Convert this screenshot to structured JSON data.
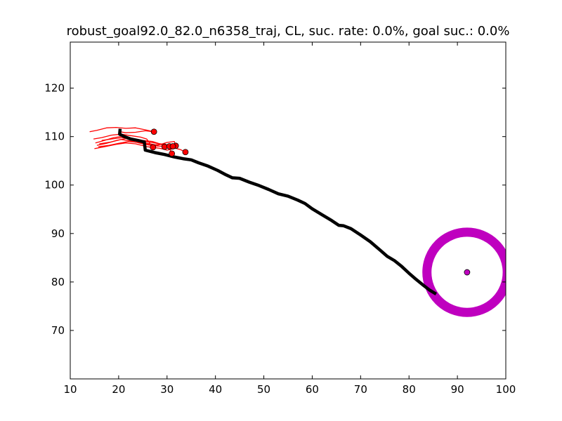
{
  "chart_data": {
    "type": "scatter",
    "title": "robust_goal92.0_82.0_n6358_traj, CL, suc. rate: 0.0%, goal suc.: 0.0%",
    "xlabel": "",
    "ylabel": "",
    "xlim": [
      10,
      100
    ],
    "ylim": [
      60,
      129.5
    ],
    "xticks": [
      10,
      20,
      30,
      40,
      50,
      60,
      70,
      80,
      90,
      100
    ],
    "yticks": [
      70,
      80,
      90,
      100,
      110,
      120
    ],
    "grid": false,
    "goal": {
      "x": 92.0,
      "y": 82.0,
      "radius": 8.3,
      "color": "#bf00bf"
    },
    "main_trajectory": {
      "color": "#000000",
      "points": [
        [
          20.3,
          111.6
        ],
        [
          20.2,
          110.5
        ],
        [
          21.2,
          110.0
        ],
        [
          22.5,
          109.5
        ],
        [
          24.0,
          109.2
        ],
        [
          25.3,
          108.9
        ],
        [
          25.5,
          107.2
        ],
        [
          27.5,
          106.7
        ],
        [
          29.5,
          106.3
        ],
        [
          31.5,
          105.8
        ],
        [
          33.5,
          105.4
        ],
        [
          35.0,
          105.2
        ],
        [
          36.5,
          104.6
        ],
        [
          38.5,
          103.9
        ],
        [
          40.5,
          103.0
        ],
        [
          42.2,
          102.1
        ],
        [
          43.5,
          101.5
        ],
        [
          45.0,
          101.4
        ],
        [
          47.0,
          100.6
        ],
        [
          49.0,
          99.9
        ],
        [
          51.0,
          99.1
        ],
        [
          53.0,
          98.2
        ],
        [
          55.0,
          97.7
        ],
        [
          57.0,
          96.9
        ],
        [
          58.5,
          96.2
        ],
        [
          60.0,
          95.1
        ],
        [
          62.0,
          93.9
        ],
        [
          64.0,
          92.7
        ],
        [
          65.5,
          91.7
        ],
        [
          66.5,
          91.6
        ],
        [
          68.0,
          91.0
        ],
        [
          70.0,
          89.7
        ],
        [
          72.0,
          88.3
        ],
        [
          74.0,
          86.6
        ],
        [
          75.5,
          85.3
        ],
        [
          77.0,
          84.4
        ],
        [
          78.5,
          83.2
        ],
        [
          80.0,
          81.8
        ],
        [
          81.5,
          80.5
        ],
        [
          83.0,
          79.3
        ],
        [
          84.3,
          78.3
        ],
        [
          85.6,
          77.5
        ]
      ]
    },
    "rollouts": {
      "color": "#ff0000",
      "lines": [
        [
          [
            20.3,
            111.0
          ],
          [
            21.5,
            110.8
          ],
          [
            23.5,
            110.9
          ],
          [
            25.5,
            111.2
          ],
          [
            27.3,
            111.0
          ]
        ],
        [
          [
            14.0,
            111.0
          ],
          [
            15.5,
            111.3
          ],
          [
            17.5,
            111.8
          ],
          [
            19.5,
            111.9
          ],
          [
            21.5,
            111.7
          ],
          [
            23.5,
            111.8
          ],
          [
            25.5,
            111.4
          ],
          [
            27.3,
            111.0
          ]
        ],
        [
          [
            14.8,
            109.5
          ],
          [
            16.5,
            109.8
          ],
          [
            18.5,
            110.3
          ],
          [
            20.5,
            110.5
          ],
          [
            22.5,
            110.2
          ],
          [
            24.5,
            109.9
          ],
          [
            25.8,
            109.5
          ],
          [
            26.5,
            108.5
          ],
          [
            27.1,
            107.8
          ]
        ],
        [
          [
            15.2,
            108.7
          ],
          [
            17.0,
            109.2
          ],
          [
            19.0,
            109.8
          ],
          [
            21.0,
            110.1
          ],
          [
            23.0,
            109.6
          ],
          [
            25.0,
            109.2
          ],
          [
            27.0,
            109.0
          ],
          [
            28.5,
            108.5
          ],
          [
            29.5,
            107.9
          ]
        ],
        [
          [
            15.5,
            108.2
          ],
          [
            17.5,
            108.6
          ],
          [
            19.5,
            109.2
          ],
          [
            21.5,
            109.6
          ],
          [
            23.5,
            109.3
          ],
          [
            25.5,
            108.7
          ],
          [
            27.5,
            108.3
          ],
          [
            29.5,
            108.5
          ],
          [
            30.5,
            108.0
          ]
        ],
        [
          [
            15.8,
            107.9
          ],
          [
            18.0,
            108.2
          ],
          [
            20.0,
            108.6
          ],
          [
            22.0,
            109.0
          ],
          [
            24.0,
            108.8
          ],
          [
            26.0,
            108.4
          ],
          [
            28.0,
            108.2
          ],
          [
            30.0,
            108.8
          ],
          [
            31.5,
            109.0
          ],
          [
            31.8,
            108.1
          ]
        ],
        [
          [
            16.0,
            108.5
          ],
          [
            18.5,
            108.9
          ],
          [
            20.5,
            109.4
          ],
          [
            22.5,
            109.1
          ],
          [
            24.5,
            108.6
          ],
          [
            27.0,
            108.1
          ],
          [
            29.0,
            108.0
          ],
          [
            30.5,
            107.6
          ],
          [
            31.0,
            106.5
          ]
        ],
        [
          [
            15.0,
            107.5
          ],
          [
            17.0,
            107.9
          ],
          [
            19.5,
            108.4
          ],
          [
            21.5,
            108.7
          ],
          [
            23.5,
            108.5
          ],
          [
            26.0,
            107.9
          ],
          [
            28.5,
            107.6
          ],
          [
            30.0,
            107.2
          ],
          [
            31.8,
            107.6
          ],
          [
            32.8,
            107.3
          ],
          [
            33.8,
            106.8
          ]
        ],
        [
          [
            16.5,
            109.2
          ],
          [
            18.5,
            109.5
          ],
          [
            20.8,
            109.8
          ],
          [
            23.0,
            109.4
          ],
          [
            25.5,
            109.0
          ],
          [
            28.0,
            108.6
          ],
          [
            30.5,
            108.2
          ],
          [
            31.2,
            108.0
          ]
        ]
      ],
      "endpoints": [
        [
          27.3,
          111.0
        ],
        [
          27.1,
          107.8
        ],
        [
          29.5,
          107.9
        ],
        [
          30.5,
          108.0
        ],
        [
          31.8,
          108.1
        ],
        [
          31.0,
          106.5
        ],
        [
          33.8,
          106.8
        ],
        [
          31.2,
          108.0
        ]
      ]
    }
  }
}
